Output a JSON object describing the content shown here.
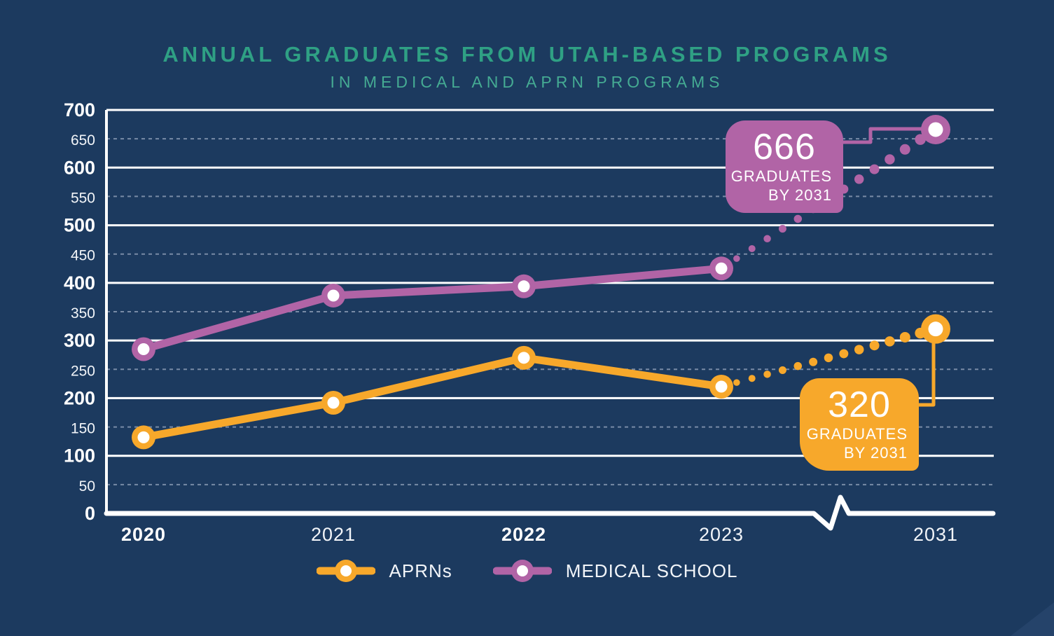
{
  "colors": {
    "background": "#1C3A5F",
    "title_teal": "#2FA084",
    "subtitle_teal": "#45AB93",
    "aprn_yellow": "#F7A82B",
    "medical_purple": "#B164A6",
    "grid_solid": "#FFFFFF",
    "grid_dashed": "#8FA0B8",
    "axis_white": "#FFFFFF",
    "text_white": "#FFFFFF"
  },
  "chart_data": {
    "type": "line",
    "title": "ANNUAL GRADUATES FROM UTAH-BASED PROGRAMS",
    "subtitle": "IN MEDICAL AND APRN PROGRAMS",
    "categories": [
      "2020",
      "2021",
      "2022",
      "2023",
      "2031"
    ],
    "ylim": [
      0,
      700
    ],
    "ytick_step": 50,
    "grid": "solid white lines every 100, dashed lines every 50",
    "axis_break": "zigzag break on x-axis between 2023 and 2031",
    "series": [
      {
        "name": "APRNs",
        "color": "#F7A82B",
        "values": [
          132,
          192,
          270,
          220,
          320
        ],
        "solid_through": "2023",
        "projection": {
          "from": "2023",
          "to": "2031",
          "style": "dotted"
        }
      },
      {
        "name": "MEDICAL SCHOOL",
        "color": "#B164A6",
        "values": [
          285,
          378,
          394,
          425,
          666
        ],
        "solid_through": "2023",
        "projection": {
          "from": "2023",
          "to": "2031",
          "style": "dotted"
        }
      }
    ],
    "annotations": [
      {
        "series": "MEDICAL SCHOOL",
        "headline": "666",
        "sub1": "GRADUATES",
        "sub2": "BY 2031",
        "box_color": "#B164A6"
      },
      {
        "series": "APRNs",
        "headline": "320",
        "sub1": "GRADUATES",
        "sub2": "BY 2031",
        "box_color": "#F7A82B"
      }
    ],
    "legend_position": "bottom-center"
  }
}
